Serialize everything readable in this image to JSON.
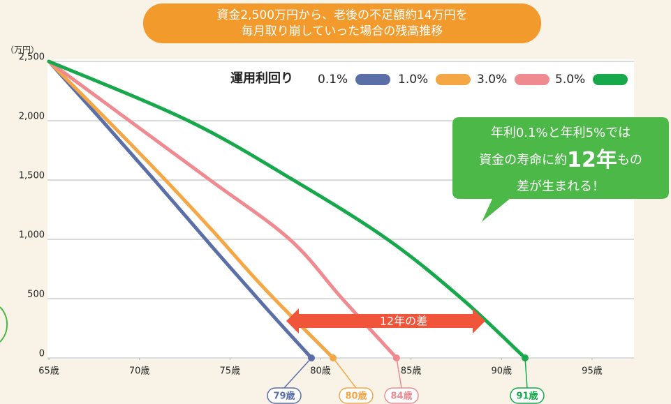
{
  "chart_data": {
    "type": "line",
    "title_lines": [
      "資金2,500万円から、老後の不足額約14万円を",
      "毎月取り崩していった場合の残高推移"
    ],
    "y_unit": "（万円）",
    "legend_title": "運用利回り",
    "xlim": [
      65,
      97.2
    ],
    "xticks": [
      {
        "value": 65,
        "label": "65歳"
      },
      {
        "value": 70,
        "label": "70歳"
      },
      {
        "value": 75,
        "label": "75歳"
      },
      {
        "value": 80,
        "label": "80歳"
      },
      {
        "value": 85,
        "label": "85歳"
      },
      {
        "value": 90,
        "label": "90歳"
      },
      {
        "value": 95,
        "label": "95歳"
      }
    ],
    "ylim": [
      0,
      2500
    ],
    "yticks": [
      0,
      {
        "value": 500,
        "label": "500"
      },
      {
        "value": 1000,
        "label": "1,000"
      },
      {
        "value": 1500,
        "label": "1,500"
      },
      {
        "value": 2000,
        "label": "2,000"
      },
      {
        "value": 2500,
        "label": "2,500"
      }
    ],
    "grid": true,
    "series": [
      {
        "name": "0.1%",
        "color": "#5a6ea8",
        "x": [
          65,
          68,
          71,
          74,
          77,
          79.5
        ],
        "values": [
          2500,
          1990,
          1470,
          940,
          420,
          0
        ],
        "end_label": "79歳"
      },
      {
        "name": "1.0%",
        "color": "#f5a645",
        "x": [
          65,
          68,
          71,
          74,
          77,
          80.7
        ],
        "values": [
          2500,
          2040,
          1570,
          1080,
          570,
          0
        ],
        "end_label": "80歳"
      },
      {
        "name": "3.0%",
        "color": "#ef8a90",
        "x": [
          65,
          69,
          73.9,
          78.3,
          81.2,
          84.2
        ],
        "values": [
          2500,
          2050,
          1500,
          1000,
          500,
          0
        ],
        "end_label": "84歳"
      },
      {
        "name": "5.0%",
        "color": "#16a84a",
        "x": [
          65,
          72.7,
          78.5,
          83.7,
          87.8,
          91.3
        ],
        "values": [
          2500,
          2000,
          1500,
          1000,
          500,
          0
        ],
        "end_label": "91歳"
      }
    ],
    "arrow_label": "12年の差",
    "callout": {
      "line1": "年利0.1%と年利5%では",
      "line2_a": "資金の寿命に約",
      "line2_b": "12年",
      "line2_c": "もの",
      "line3": "差が生まれる！"
    }
  }
}
